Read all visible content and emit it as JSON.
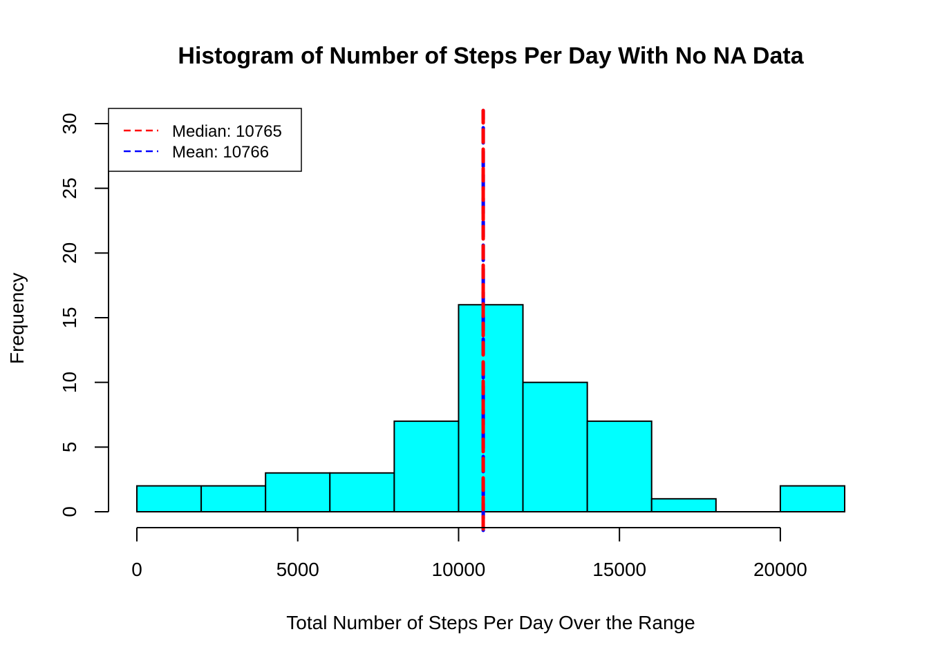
{
  "chart_data": {
    "type": "bar",
    "title": "Histogram of Number of Steps Per Day With No NA Data",
    "xlabel": "Total Number of Steps Per Day Over the Range",
    "ylabel": "Frequency",
    "bins": [
      {
        "start": 0,
        "end": 2000,
        "count": 2
      },
      {
        "start": 2000,
        "end": 4000,
        "count": 2
      },
      {
        "start": 4000,
        "end": 6000,
        "count": 3
      },
      {
        "start": 6000,
        "end": 8000,
        "count": 3
      },
      {
        "start": 8000,
        "end": 10000,
        "count": 7
      },
      {
        "start": 10000,
        "end": 12000,
        "count": 16
      },
      {
        "start": 12000,
        "end": 14000,
        "count": 10
      },
      {
        "start": 14000,
        "end": 16000,
        "count": 7
      },
      {
        "start": 16000,
        "end": 18000,
        "count": 1
      },
      {
        "start": 18000,
        "end": 20000,
        "count": 0
      },
      {
        "start": 20000,
        "end": 22000,
        "count": 2
      }
    ],
    "xticks": [
      0,
      5000,
      10000,
      15000,
      20000
    ],
    "xtick_labels": [
      "0",
      "5000",
      "10000",
      "15000",
      "20000"
    ],
    "yticks": [
      0,
      5,
      10,
      15,
      20,
      25,
      30
    ],
    "ytick_labels": [
      "0",
      "5",
      "10",
      "15",
      "20",
      "25",
      "30"
    ],
    "xlim": [
      0,
      22000
    ],
    "ylim": [
      0,
      30
    ],
    "bar_color": "#00ffff",
    "grid": false,
    "legend_position": "top-left",
    "reference_lines": [
      {
        "name": "Median",
        "value": 10765,
        "color": "#ff0000"
      },
      {
        "name": "Mean",
        "value": 10766,
        "color": "#0000ff"
      }
    ],
    "legend": [
      {
        "label": "Median:  10765",
        "color": "#ff0000"
      },
      {
        "label": "Mean:  10766",
        "color": "#0000ff"
      }
    ]
  }
}
